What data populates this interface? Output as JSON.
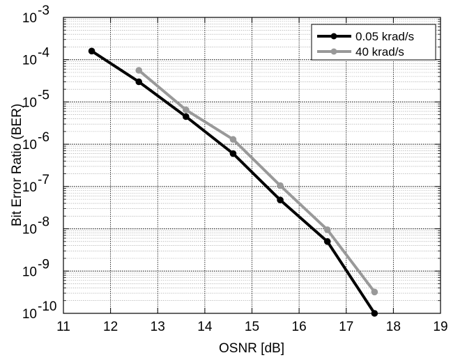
{
  "chart_data": {
    "type": "line",
    "title": "",
    "xlabel": "OSNR [dB]",
    "ylabel": "Bit Error Ratio (BER)",
    "xlim": [
      11,
      19
    ],
    "ylim_exponents": [
      -10,
      -3
    ],
    "yscale": "log",
    "xticks": [
      "11",
      "12",
      "13",
      "14",
      "15",
      "16",
      "17",
      "18",
      "19"
    ],
    "yticks": [
      {
        "base": "10",
        "exp": "-10",
        "v": -10
      },
      {
        "base": "10",
        "exp": "-9",
        "v": -9
      },
      {
        "base": "10",
        "exp": "-8",
        "v": -8
      },
      {
        "base": "10",
        "exp": "-7",
        "v": -7
      },
      {
        "base": "10",
        "exp": "-6",
        "v": -6
      },
      {
        "base": "10",
        "exp": "-5",
        "v": -5
      },
      {
        "base": "10",
        "exp": "-4",
        "v": -4
      },
      {
        "base": "10",
        "exp": "-3",
        "v": -3
      }
    ],
    "grid": true,
    "legend_position": "top-right",
    "series": [
      {
        "name": "0.05 krad/s",
        "color": "#000000",
        "x": [
          11.6,
          12.6,
          13.6,
          14.6,
          15.6,
          16.6,
          17.6
        ],
        "y": [
          0.00016,
          3e-05,
          4.5e-06,
          6e-07,
          4.8e-08,
          5e-09,
          1e-10
        ]
      },
      {
        "name": "40 krad/s",
        "color": "#999999",
        "x": [
          12.6,
          13.6,
          14.6,
          15.6,
          16.6,
          17.6
        ],
        "y": [
          5.6e-05,
          6.5e-06,
          1.3e-06,
          1.05e-07,
          9.5e-09,
          3.2e-10
        ]
      }
    ]
  }
}
